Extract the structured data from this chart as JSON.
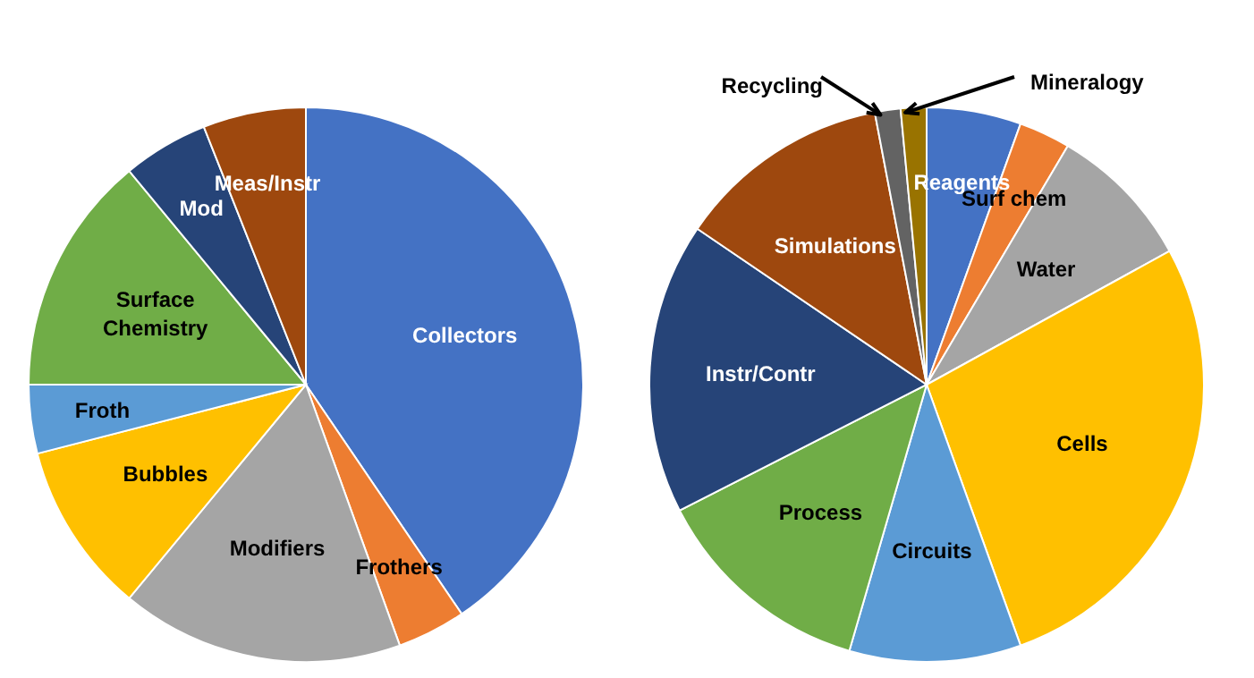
{
  "chart_data": [
    {
      "type": "pie",
      "categories": [
        "Collectors",
        "Frothers",
        "Modifiers",
        "Bubbles",
        "Froth",
        "Surface Chemistry",
        "Mod",
        "Meas/Instr"
      ],
      "values": [
        40.5,
        4,
        16.5,
        10,
        4,
        14,
        5,
        6
      ],
      "colors": [
        "#4472c4",
        "#ed7d31",
        "#a5a5a5",
        "#ffc000",
        "#5b9bd5",
        "#70ad47",
        "#264478",
        "#9e480e"
      ]
    },
    {
      "type": "pie",
      "categories": [
        "Reagents",
        "Surf chem",
        "Water",
        "Cells",
        "Circuits",
        "Process",
        "Instr/Contr",
        "Simulations",
        "Recycling",
        "Mineralogy"
      ],
      "values": [
        5.5,
        3,
        8.5,
        27.5,
        10,
        13,
        17,
        12.5,
        1.5,
        1.5
      ],
      "colors": [
        "#4472c4",
        "#ed7d31",
        "#a5a5a5",
        "#ffc000",
        "#5b9bd5",
        "#70ad47",
        "#264478",
        "#9e480e",
        "#636363",
        "#997300"
      ]
    }
  ]
}
